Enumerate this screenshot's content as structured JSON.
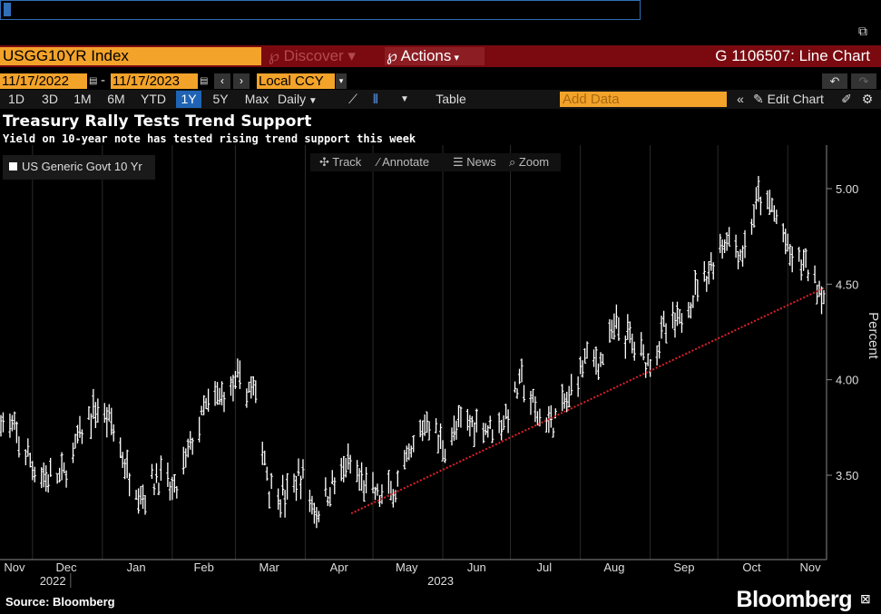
{
  "command_line": {
    "value": ""
  },
  "header": {
    "ticker": "USGG10YR Index",
    "discover": "Discover",
    "actions": "Actions",
    "chart_title": "G 1106507: Line Chart"
  },
  "date_range": {
    "start": "11/17/2022",
    "separator": "-",
    "end": "11/17/2023",
    "currency": "Local CCY"
  },
  "toolbar": {
    "periods": [
      "1D",
      "3D",
      "1M",
      "6M",
      "YTD",
      "1Y",
      "5Y",
      "Max"
    ],
    "selected_period": "1Y",
    "frequency": "Daily",
    "table_label": "Table",
    "add_data_placeholder": "Add Data",
    "edit_chart_label": "Edit Chart"
  },
  "headline": "Treasury Rally Tests Trend Support",
  "subheadline": "Yield on 10-year note has tested rising trend support this week",
  "chart_tools": {
    "track": "Track",
    "annotate": "Annotate",
    "news": "News",
    "zoom": "Zoom"
  },
  "footer": {
    "source": "Source: Bloomberg",
    "brand": "Bloomberg"
  },
  "colors": {
    "accent_orange": "#f3a32a",
    "header_red": "#7a0a10",
    "selected_blue": "#1f64b4",
    "trend_line": "#e0202a"
  },
  "chart_data": {
    "type": "line",
    "style": "ohlc-bars",
    "title": "Treasury Rally Tests Trend Support",
    "subtitle": "Yield on 10-year note has tested rising trend support this week",
    "ylabel": "Percent",
    "ylim": [
      3.1,
      5.15
    ],
    "y_ticks": [
      "3.50",
      "4.00",
      "4.50",
      "5.00"
    ],
    "x_month_ticks": [
      "Nov",
      "Dec",
      "Jan",
      "Feb",
      "Mar",
      "Apr",
      "May",
      "Jun",
      "Jul",
      "Aug",
      "Sep",
      "Oct",
      "Nov"
    ],
    "x_year_labels": [
      "2022",
      "2023"
    ],
    "x_range": [
      "2022-11-17",
      "2023-11-17"
    ],
    "legend": "top-left",
    "grid": "vertical month lines only",
    "series": [
      {
        "name": "US Generic Govt 10 Yr",
        "x": [
          "2022-11-17",
          "2022-11-24",
          "2022-12-01",
          "2022-12-08",
          "2022-12-15",
          "2022-12-22",
          "2022-12-29",
          "2023-01-05",
          "2023-01-12",
          "2023-01-19",
          "2023-01-26",
          "2023-02-02",
          "2023-02-09",
          "2023-02-16",
          "2023-02-23",
          "2023-03-02",
          "2023-03-09",
          "2023-03-16",
          "2023-03-23",
          "2023-03-30",
          "2023-04-06",
          "2023-04-13",
          "2023-04-20",
          "2023-04-27",
          "2023-05-04",
          "2023-05-11",
          "2023-05-18",
          "2023-05-25",
          "2023-06-01",
          "2023-06-08",
          "2023-06-15",
          "2023-06-22",
          "2023-06-29",
          "2023-07-06",
          "2023-07-13",
          "2023-07-20",
          "2023-07-27",
          "2023-08-03",
          "2023-08-10",
          "2023-08-17",
          "2023-08-24",
          "2023-08-31",
          "2023-09-07",
          "2023-09-14",
          "2023-09-21",
          "2023-09-28",
          "2023-10-05",
          "2023-10-12",
          "2023-10-19",
          "2023-10-26",
          "2023-11-02",
          "2023-11-09",
          "2023-11-16",
          "2023-11-17"
        ],
        "values": [
          3.8,
          3.7,
          3.55,
          3.48,
          3.5,
          3.7,
          3.85,
          3.78,
          3.52,
          3.4,
          3.5,
          3.4,
          3.65,
          3.85,
          3.92,
          3.98,
          3.95,
          3.45,
          3.38,
          3.5,
          3.3,
          3.45,
          3.55,
          3.45,
          3.38,
          3.42,
          3.6,
          3.8,
          3.65,
          3.75,
          3.78,
          3.75,
          3.8,
          4.0,
          3.8,
          3.78,
          3.9,
          4.12,
          4.1,
          4.28,
          4.2,
          4.1,
          4.25,
          4.3,
          4.48,
          4.6,
          4.75,
          4.65,
          4.95,
          4.88,
          4.65,
          4.6,
          4.47,
          4.45
        ]
      }
    ],
    "trend_line": {
      "style": "dotted",
      "x": [
        "2023-04-27",
        "2023-11-17"
      ],
      "values": [
        3.3,
        4.48
      ]
    }
  }
}
